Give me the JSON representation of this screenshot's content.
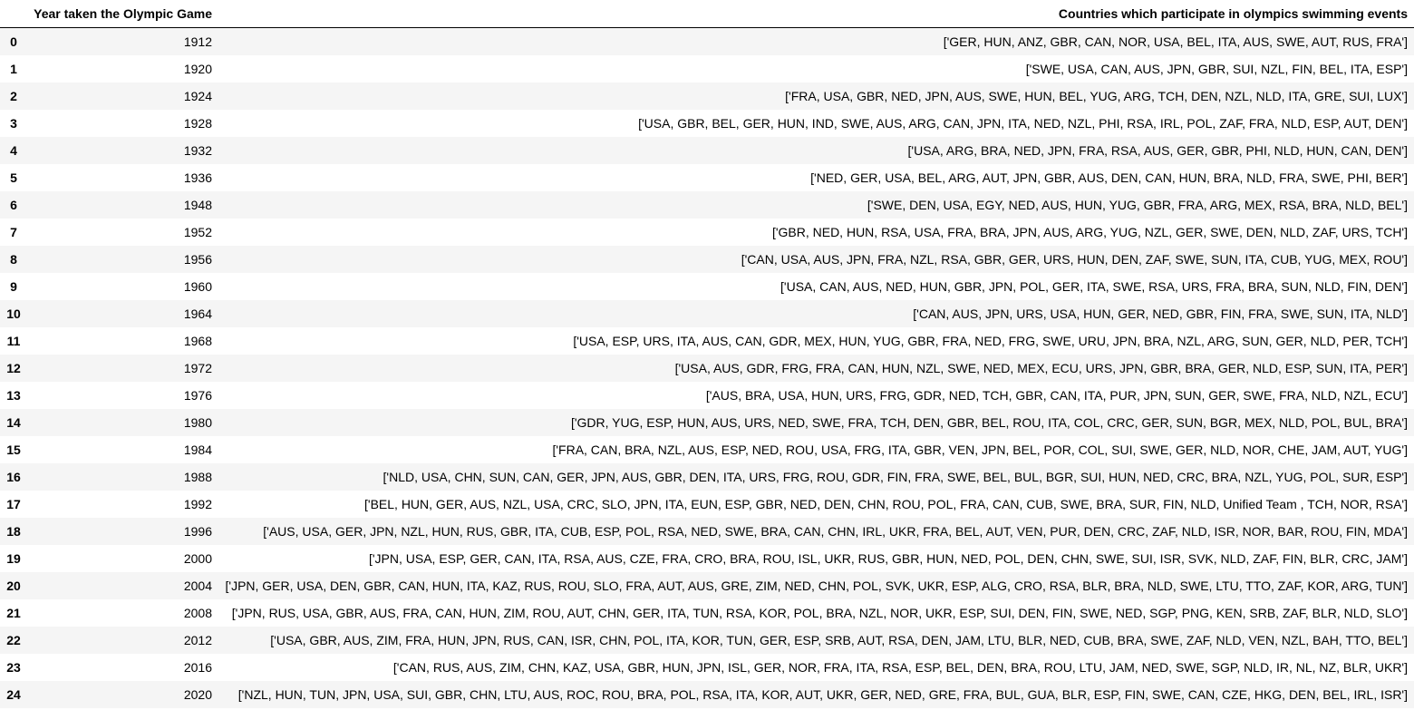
{
  "table": {
    "columns": {
      "index_header": "",
      "year_header": "Year taken the Olympic Game",
      "countries_header": "Countries which participate in olympics swimming events"
    },
    "rows": [
      {
        "index": "0",
        "year": "1912",
        "countries": "['GER, HUN, ANZ, GBR, CAN, NOR, USA, BEL, ITA, AUS, SWE, AUT, RUS, FRA']"
      },
      {
        "index": "1",
        "year": "1920",
        "countries": "['SWE, USA, CAN, AUS, JPN, GBR, SUI, NZL, FIN, BEL, ITA, ESP']"
      },
      {
        "index": "2",
        "year": "1924",
        "countries": "['FRA, USA, GBR, NED, JPN, AUS, SWE, HUN, BEL, YUG, ARG, TCH, DEN, NZL, NLD, ITA, GRE, SUI, LUX']"
      },
      {
        "index": "3",
        "year": "1928",
        "countries": "['USA, GBR, BEL, GER, HUN, IND, SWE, AUS, ARG, CAN, JPN, ITA, NED, NZL, PHI, RSA, IRL, POL, ZAF, FRA, NLD, ESP, AUT, DEN']"
      },
      {
        "index": "4",
        "year": "1932",
        "countries": "['USA, ARG, BRA, NED, JPN, FRA, RSA, AUS, GER, GBR, PHI, NLD, HUN, CAN, DEN']"
      },
      {
        "index": "5",
        "year": "1936",
        "countries": "['NED, GER, USA, BEL, ARG, AUT, JPN, GBR, AUS, DEN, CAN, HUN, BRA, NLD, FRA, SWE, PHI, BER']"
      },
      {
        "index": "6",
        "year": "1948",
        "countries": "['SWE, DEN, USA, EGY, NED, AUS, HUN, YUG, GBR, FRA, ARG, MEX, RSA, BRA, NLD, BEL']"
      },
      {
        "index": "7",
        "year": "1952",
        "countries": "['GBR, NED, HUN, RSA, USA, FRA, BRA, JPN, AUS, ARG, YUG, NZL, GER, SWE, DEN, NLD, ZAF, URS, TCH']"
      },
      {
        "index": "8",
        "year": "1956",
        "countries": "['CAN, USA, AUS, JPN, FRA, NZL, RSA, GBR, GER, URS, HUN, DEN, ZAF, SWE, SUN, ITA, CUB, YUG, MEX, ROU']"
      },
      {
        "index": "9",
        "year": "1960",
        "countries": "['USA, CAN, AUS, NED, HUN, GBR, JPN, POL, GER, ITA, SWE, RSA, URS, FRA, BRA, SUN, NLD, FIN, DEN']"
      },
      {
        "index": "10",
        "year": "1964",
        "countries": "['CAN, AUS, JPN, URS, USA, HUN, GER, NED, GBR, FIN, FRA, SWE, SUN, ITA, NLD']"
      },
      {
        "index": "11",
        "year": "1968",
        "countries": "['USA, ESP, URS, ITA, AUS, CAN, GDR, MEX, HUN, YUG, GBR, FRA, NED, FRG, SWE, URU, JPN, BRA, NZL, ARG, SUN, GER, NLD, PER, TCH']"
      },
      {
        "index": "12",
        "year": "1972",
        "countries": "['USA, AUS, GDR, FRG, FRA, CAN, HUN, NZL, SWE, NED, MEX, ECU, URS, JPN, GBR, BRA, GER, NLD, ESP, SUN, ITA, PER']"
      },
      {
        "index": "13",
        "year": "1976",
        "countries": "['AUS, BRA, USA, HUN, URS, FRG, GDR, NED, TCH, GBR, CAN, ITA, PUR, JPN, SUN, GER, SWE, FRA, NLD, NZL, ECU']"
      },
      {
        "index": "14",
        "year": "1980",
        "countries": "['GDR, YUG, ESP, HUN, AUS, URS, NED, SWE, FRA, TCH, DEN, GBR, BEL, ROU, ITA, COL, CRC, GER, SUN, BGR, MEX, NLD, POL, BUL, BRA']"
      },
      {
        "index": "15",
        "year": "1984",
        "countries": "['FRA, CAN, BRA, NZL, AUS, ESP, NED, ROU, USA, FRG, ITA, GBR, VEN, JPN, BEL, POR, COL, SUI, SWE, GER, NLD, NOR, CHE, JAM, AUT, YUG']"
      },
      {
        "index": "16",
        "year": "1988",
        "countries": "['NLD, USA, CHN, SUN, CAN, GER, JPN, AUS, GBR, DEN, ITA, URS, FRG, ROU, GDR, FIN, FRA, SWE, BEL, BUL, BGR, SUI, HUN, NED, CRC, BRA, NZL, YUG, POL, SUR, ESP']"
      },
      {
        "index": "17",
        "year": "1992",
        "countries": "['BEL, HUN, GER, AUS, NZL, USA, CRC, SLO, JPN, ITA, EUN, ESP, GBR, NED, DEN, CHN, ROU, POL, FRA, CAN, CUB, SWE, BRA, SUR, FIN, NLD, Unified Team , TCH, NOR, RSA']"
      },
      {
        "index": "18",
        "year": "1996",
        "countries": "['AUS, USA, GER, JPN, NZL, HUN, RUS, GBR, ITA, CUB, ESP, POL, RSA, NED, SWE, BRA, CAN, CHN, IRL, UKR, FRA, BEL, AUT, VEN, PUR, DEN, CRC, ZAF, NLD, ISR, NOR, BAR, ROU, FIN, MDA']"
      },
      {
        "index": "19",
        "year": "2000",
        "countries": "['JPN, USA, ESP, GER, CAN, ITA, RSA, AUS, CZE, FRA, CRO, BRA, ROU, ISL, UKR, RUS, GBR, HUN, NED, POL, DEN, CHN, SWE, SUI, ISR, SVK, NLD, ZAF, FIN, BLR, CRC, JAM']"
      },
      {
        "index": "20",
        "year": "2004",
        "countries": "['JPN, GER, USA, DEN, GBR, CAN, HUN, ITA, KAZ, RUS, ROU, SLO, FRA, AUT, AUS, GRE, ZIM, NED, CHN, POL, SVK, UKR, ESP, ALG, CRO, RSA, BLR, BRA, NLD, SWE, LTU, TTO, ZAF, KOR, ARG, TUN']"
      },
      {
        "index": "21",
        "year": "2008",
        "countries": "['JPN, RUS, USA, GBR, AUS, FRA, CAN, HUN, ZIM, ROU, AUT, CHN, GER, ITA, TUN, RSA, KOR, POL, BRA, NZL, NOR, UKR, ESP, SUI, DEN, FIN, SWE, NED, SGP, PNG, KEN, SRB, ZAF, BLR, NLD, SLO']"
      },
      {
        "index": "22",
        "year": "2012",
        "countries": "['USA, GBR, AUS, ZIM, FRA, HUN, JPN, RUS, CAN, ISR, CHN, POL, ITA, KOR, TUN, GER, ESP, SRB, AUT, RSA, DEN, JAM, LTU, BLR, NED, CUB, BRA, SWE, ZAF, NLD, VEN, NZL, BAH, TTO, BEL']"
      },
      {
        "index": "23",
        "year": "2016",
        "countries": "['CAN, RUS, AUS, ZIM, CHN, KAZ, USA, GBR, HUN, JPN, ISL, GER, NOR, FRA, ITA, RSA, ESP, BEL, DEN, BRA, ROU, LTU, JAM, NED, SWE, SGP, NLD, IR, NL, NZ, BLR, UKR']"
      },
      {
        "index": "24",
        "year": "2020",
        "countries": "['NZL, HUN, TUN, JPN, USA, SUI, GBR, CHN, LTU, AUS, ROC, ROU, BRA, POL, RSA, ITA, KOR, AUT, UKR, GER, NED, GRE, FRA, BUL, GUA, BLR, ESP, FIN, SWE, CAN, CZE, HKG, DEN, BEL, IRL, ISR']"
      }
    ]
  }
}
